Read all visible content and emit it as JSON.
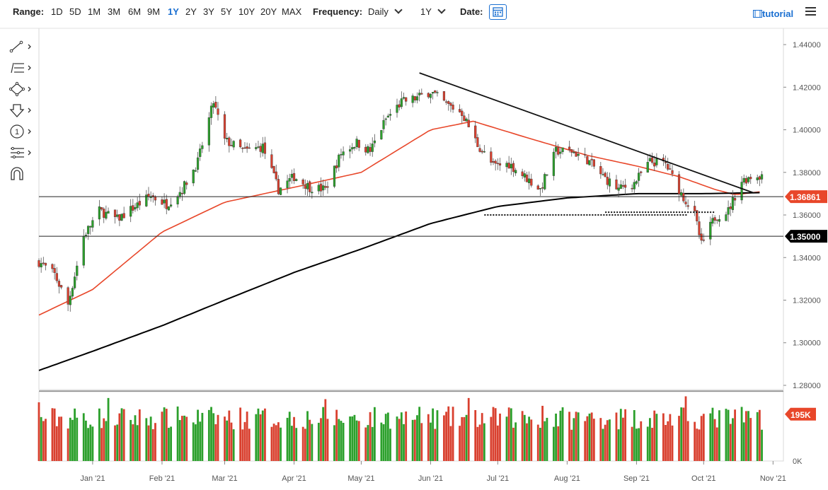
{
  "topbar": {
    "range_label": "Range:",
    "ranges": [
      "1D",
      "5D",
      "1M",
      "3M",
      "6M",
      "9M",
      "1Y",
      "2Y",
      "3Y",
      "5Y",
      "10Y",
      "20Y",
      "MAX"
    ],
    "active_range": "1Y",
    "frequency_label": "Frequency:",
    "frequency_value": "Daily",
    "period_value": "1Y",
    "date_label": "Date:",
    "tutorial_label": "tutorial"
  },
  "toolbar": {
    "tools": [
      "trendline-tool-icon",
      "fibonacci-tool-icon",
      "shapes-tool-icon",
      "arrow-tool-icon",
      "annotation-tool-icon",
      "measure-tool-icon",
      "magnet-tool-icon"
    ]
  },
  "colors": {
    "up": "#2ca02c",
    "down": "#d9402f",
    "ma50": "#e8472a",
    "ma200": "#000000",
    "accent": "#1a6fd1",
    "badge_red": "#e8472a",
    "badge_black": "#000000"
  },
  "chart_data": {
    "type": "candlestick",
    "yticks": [
      "1.44000",
      "1.42000",
      "1.40000",
      "1.38000",
      "1.36000",
      "1.34000",
      "1.32000",
      "1.30000",
      "1.28000"
    ],
    "ylim": [
      1.278,
      1.446
    ],
    "xticks": [
      "Jan '21",
      "Feb '21",
      "Mar '21",
      "Apr '21",
      "May '21",
      "Jun '21",
      "Jul '21",
      "Aug '21",
      "Sep '21",
      "Oct '21",
      "Nov '21"
    ],
    "xrange": [
      "2020-12-08",
      "2021-11-05"
    ],
    "series": {
      "close_anchors": [
        [
          "2020-12-08",
          1.338
        ],
        [
          "2020-12-15",
          1.332
        ],
        [
          "2020-12-21",
          1.318
        ],
        [
          "2020-12-28",
          1.35
        ],
        [
          "2021-01-04",
          1.362
        ],
        [
          "2021-01-12",
          1.358
        ],
        [
          "2021-01-20",
          1.364
        ],
        [
          "2021-01-27",
          1.369
        ],
        [
          "2021-02-03",
          1.365
        ],
        [
          "2021-02-10",
          1.372
        ],
        [
          "2021-02-17",
          1.385
        ],
        [
          "2021-02-24",
          1.413
        ],
        [
          "2021-03-01",
          1.395
        ],
        [
          "2021-03-10",
          1.39
        ],
        [
          "2021-03-18",
          1.392
        ],
        [
          "2021-03-25",
          1.372
        ],
        [
          "2021-04-01",
          1.378
        ],
        [
          "2021-04-08",
          1.373
        ],
        [
          "2021-04-15",
          1.372
        ],
        [
          "2021-04-22",
          1.389
        ],
        [
          "2021-04-29",
          1.394
        ],
        [
          "2021-05-05",
          1.39
        ],
        [
          "2021-05-12",
          1.405
        ],
        [
          "2021-05-19",
          1.413
        ],
        [
          "2021-05-26",
          1.415
        ],
        [
          "2021-06-01",
          1.418
        ],
        [
          "2021-06-08",
          1.412
        ],
        [
          "2021-06-15",
          1.408
        ],
        [
          "2021-06-22",
          1.393
        ],
        [
          "2021-06-29",
          1.383
        ],
        [
          "2021-07-06",
          1.384
        ],
        [
          "2021-07-13",
          1.378
        ],
        [
          "2021-07-20",
          1.372
        ],
        [
          "2021-07-27",
          1.39
        ],
        [
          "2021-08-03",
          1.39
        ],
        [
          "2021-08-10",
          1.386
        ],
        [
          "2021-08-17",
          1.378
        ],
        [
          "2021-08-24",
          1.372
        ],
        [
          "2021-08-31",
          1.375
        ],
        [
          "2021-09-07",
          1.385
        ],
        [
          "2021-09-14",
          1.384
        ],
        [
          "2021-09-21",
          1.37
        ],
        [
          "2021-09-27",
          1.36
        ],
        [
          "2021-09-30",
          1.346
        ],
        [
          "2021-10-06",
          1.359
        ],
        [
          "2021-10-12",
          1.362
        ],
        [
          "2021-10-18",
          1.376
        ],
        [
          "2021-10-22",
          1.378
        ],
        [
          "2021-10-27",
          1.3786
        ]
      ],
      "ma50_anchors": [
        [
          "2020-12-08",
          1.313
        ],
        [
          "2021-01-01",
          1.325
        ],
        [
          "2021-02-01",
          1.352
        ],
        [
          "2021-03-01",
          1.366
        ],
        [
          "2021-04-01",
          1.373
        ],
        [
          "2021-05-01",
          1.38
        ],
        [
          "2021-06-01",
          1.4
        ],
        [
          "2021-06-20",
          1.404
        ],
        [
          "2021-07-15",
          1.396
        ],
        [
          "2021-08-10",
          1.388
        ],
        [
          "2021-09-01",
          1.383
        ],
        [
          "2021-09-20",
          1.378
        ],
        [
          "2021-10-06",
          1.372
        ],
        [
          "2021-10-15",
          1.3695
        ],
        [
          "2021-10-27",
          1.371
        ]
      ],
      "ma200_anchors": [
        [
          "2020-12-08",
          1.287
        ],
        [
          "2021-01-01",
          1.296
        ],
        [
          "2021-02-01",
          1.308
        ],
        [
          "2021-03-01",
          1.32
        ],
        [
          "2021-04-01",
          1.333
        ],
        [
          "2021-05-01",
          1.344
        ],
        [
          "2021-06-01",
          1.356
        ],
        [
          "2021-07-01",
          1.364
        ],
        [
          "2021-08-01",
          1.368
        ],
        [
          "2021-09-01",
          1.37
        ],
        [
          "2021-10-01",
          1.37
        ],
        [
          "2021-10-27",
          1.3705
        ]
      ]
    },
    "horizontal_lines": [
      {
        "price": 1.36861,
        "label": "1.36861",
        "color": "#e8472a"
      },
      {
        "price": 1.35,
        "label": "1.35000",
        "color": "#000000"
      }
    ],
    "trendline": {
      "from": [
        "2021-05-27",
        1.4267
      ],
      "to": [
        "2021-10-23",
        1.3705
      ]
    },
    "support_dotted": [
      {
        "from": [
          "2021-06-25",
          1.36
        ],
        "to": [
          "2021-09-24",
          1.36
        ]
      },
      {
        "from": [
          "2021-08-18",
          1.3613
        ],
        "to": [
          "2021-10-06",
          1.3613
        ]
      }
    ],
    "volume": {
      "yticks": [
        "0K"
      ],
      "badge": "195K",
      "max": 250
    }
  }
}
